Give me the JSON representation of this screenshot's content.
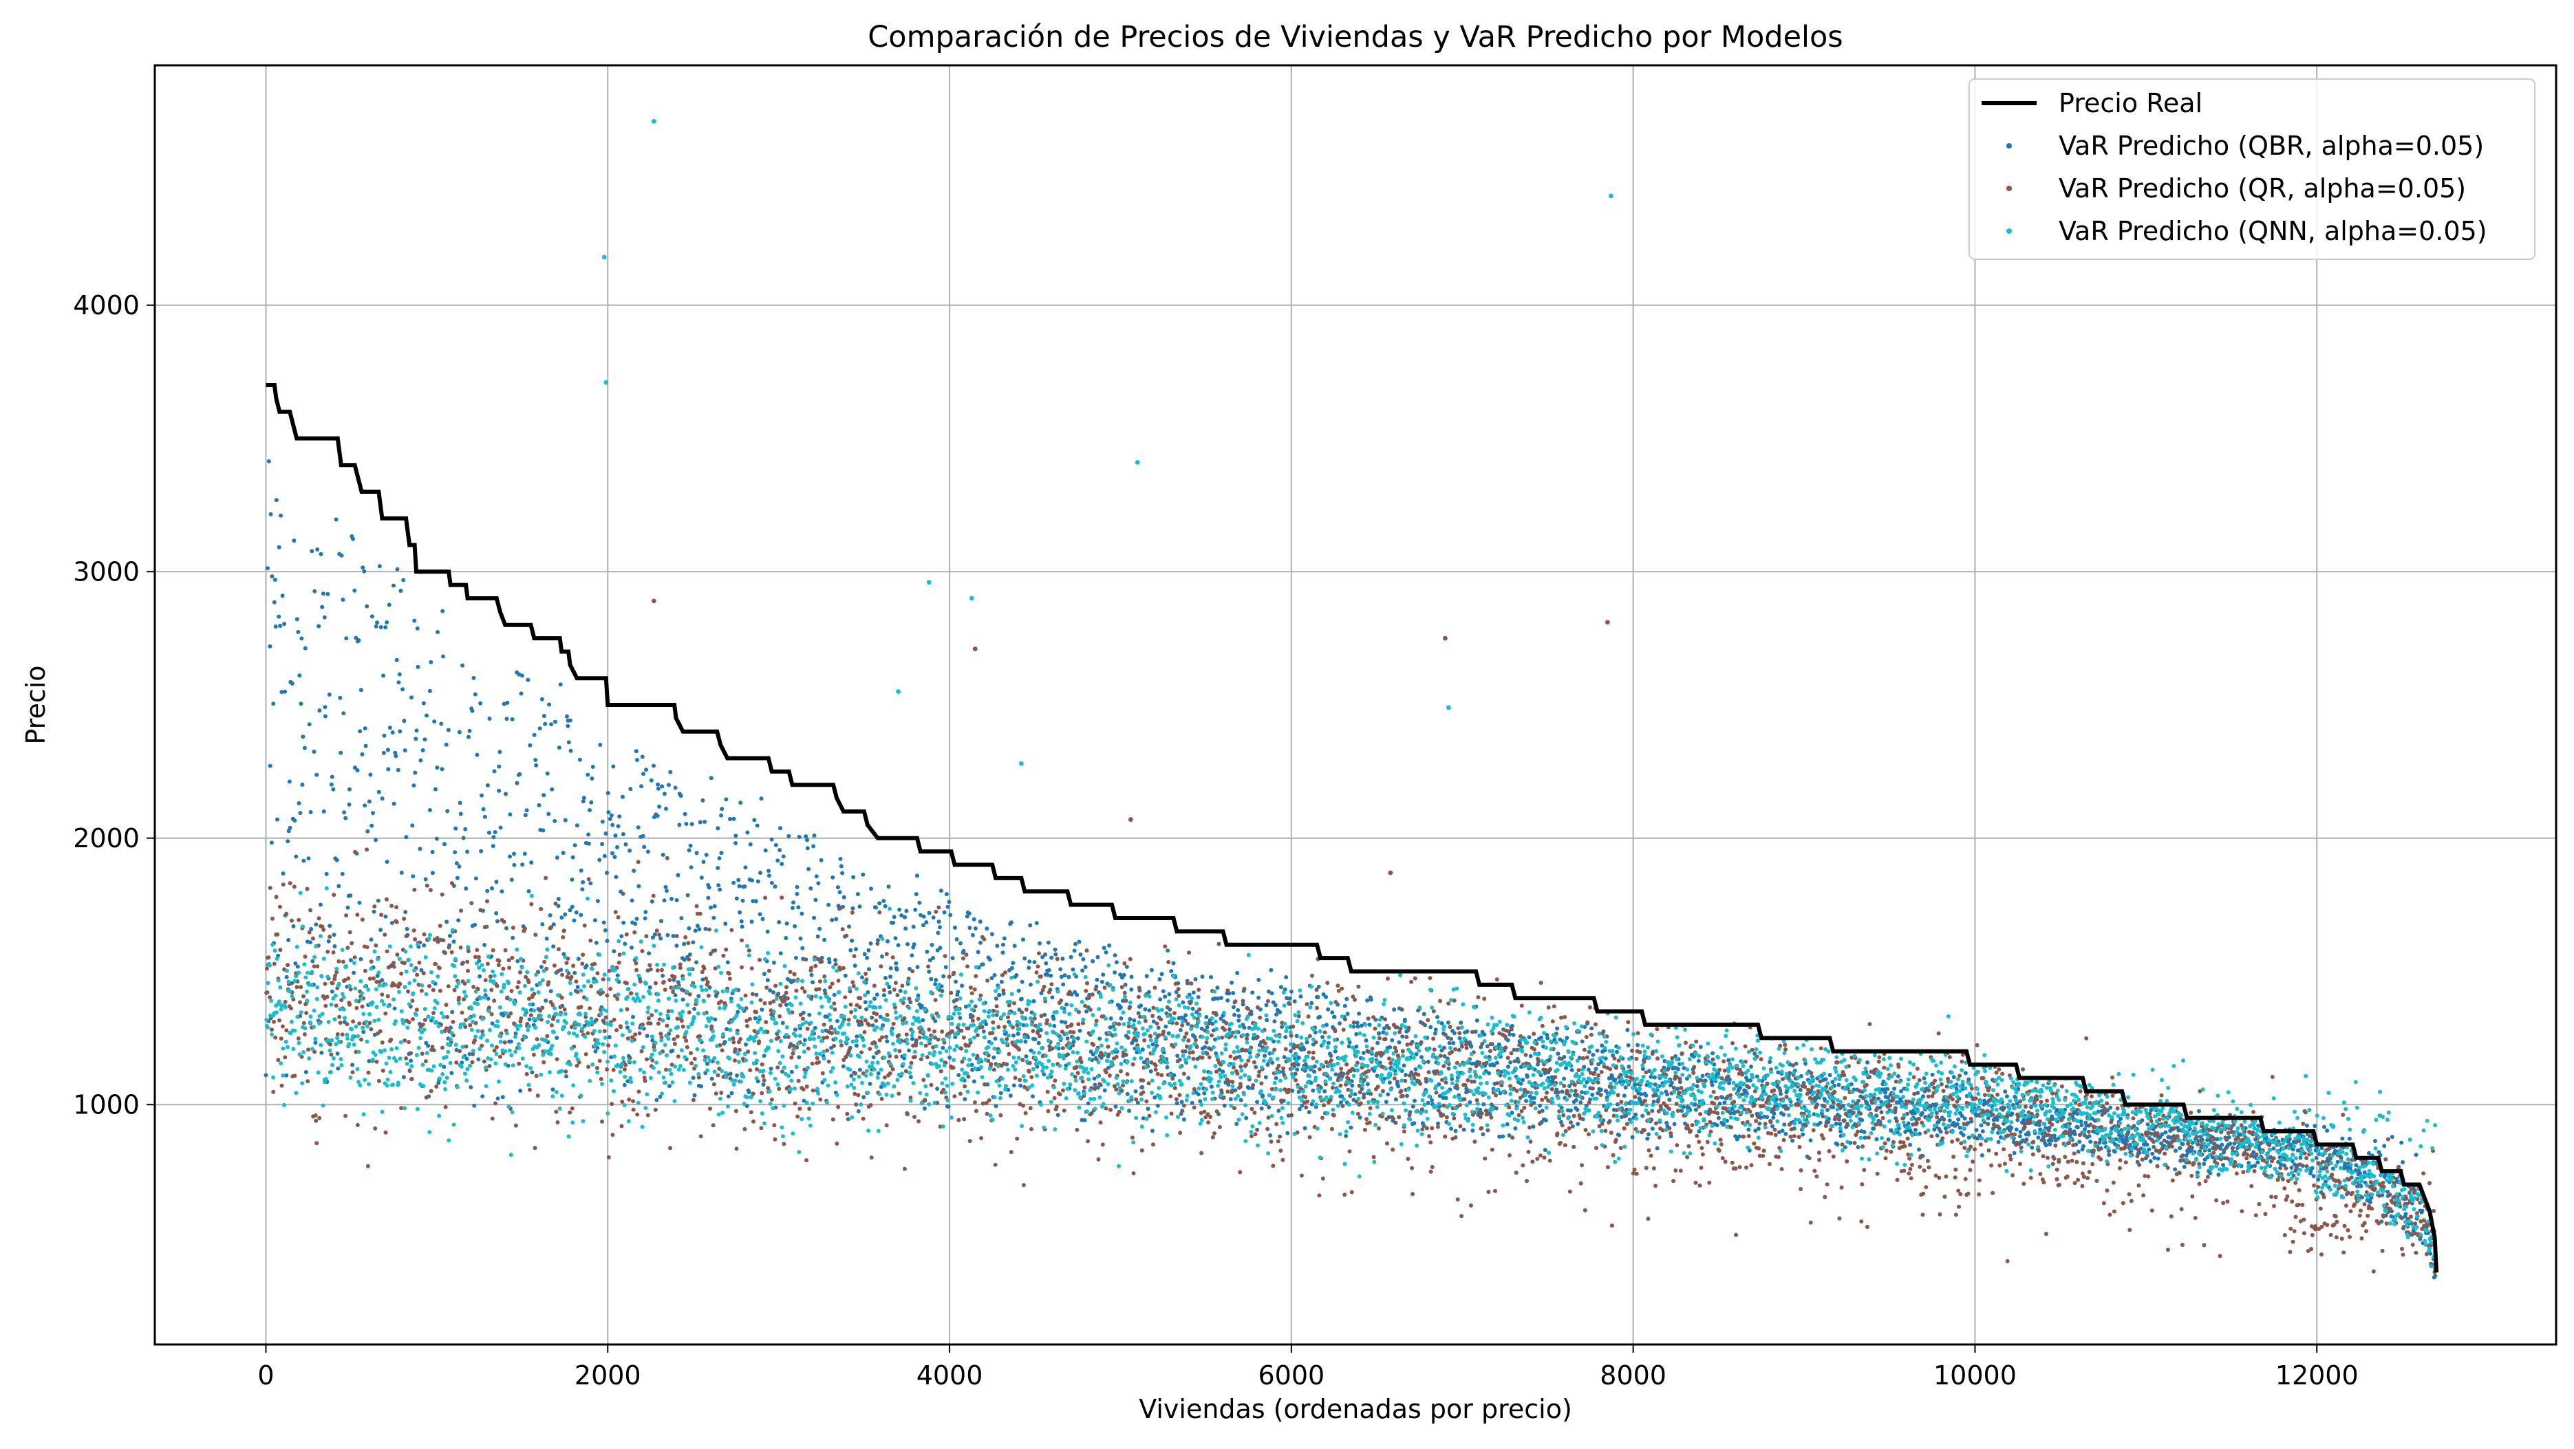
{
  "chart_data": {
    "type": "scatter",
    "title": "Comparación de Precios de Viviendas y VaR Predicho por Modelos",
    "xlabel": "Viviendas (ordenadas por precio)",
    "ylabel": "Precio",
    "xlim": [
      -650,
      13400
    ],
    "ylim": [
      100,
      4900
    ],
    "xticks": [
      0,
      2000,
      4000,
      6000,
      8000,
      10000,
      12000
    ],
    "yticks": [
      1000,
      2000,
      3000,
      4000
    ],
    "grid": true,
    "legend_position": "top-right",
    "n_points": 12700,
    "series": [
      {
        "name": "Precio Real",
        "kind": "line",
        "color": "#000000",
        "points": [
          [
            0,
            3700
          ],
          [
            50,
            3700
          ],
          [
            60,
            3650
          ],
          [
            80,
            3600
          ],
          [
            140,
            3600
          ],
          [
            160,
            3550
          ],
          [
            180,
            3500
          ],
          [
            420,
            3500
          ],
          [
            440,
            3400
          ],
          [
            520,
            3400
          ],
          [
            540,
            3350
          ],
          [
            560,
            3300
          ],
          [
            660,
            3300
          ],
          [
            680,
            3200
          ],
          [
            820,
            3200
          ],
          [
            840,
            3100
          ],
          [
            870,
            3100
          ],
          [
            880,
            3000
          ],
          [
            1070,
            3000
          ],
          [
            1080,
            2950
          ],
          [
            1170,
            2950
          ],
          [
            1180,
            2900
          ],
          [
            1350,
            2900
          ],
          [
            1370,
            2850
          ],
          [
            1400,
            2800
          ],
          [
            1550,
            2800
          ],
          [
            1570,
            2750
          ],
          [
            1720,
            2750
          ],
          [
            1730,
            2700
          ],
          [
            1770,
            2700
          ],
          [
            1780,
            2650
          ],
          [
            1820,
            2600
          ],
          [
            1990,
            2600
          ],
          [
            2000,
            2500
          ],
          [
            2390,
            2500
          ],
          [
            2400,
            2450
          ],
          [
            2440,
            2400
          ],
          [
            2640,
            2400
          ],
          [
            2660,
            2350
          ],
          [
            2700,
            2300
          ],
          [
            2940,
            2300
          ],
          [
            2960,
            2250
          ],
          [
            3060,
            2250
          ],
          [
            3080,
            2200
          ],
          [
            3320,
            2200
          ],
          [
            3340,
            2150
          ],
          [
            3380,
            2100
          ],
          [
            3500,
            2100
          ],
          [
            3520,
            2050
          ],
          [
            3580,
            2000
          ],
          [
            3810,
            2000
          ],
          [
            3830,
            1950
          ],
          [
            4010,
            1950
          ],
          [
            4030,
            1900
          ],
          [
            4250,
            1900
          ],
          [
            4270,
            1850
          ],
          [
            4420,
            1850
          ],
          [
            4440,
            1800
          ],
          [
            4690,
            1800
          ],
          [
            4710,
            1750
          ],
          [
            4950,
            1750
          ],
          [
            4970,
            1700
          ],
          [
            5310,
            1700
          ],
          [
            5330,
            1650
          ],
          [
            5600,
            1650
          ],
          [
            5620,
            1600
          ],
          [
            6150,
            1600
          ],
          [
            6170,
            1550
          ],
          [
            6330,
            1550
          ],
          [
            6350,
            1500
          ],
          [
            7080,
            1500
          ],
          [
            7100,
            1450
          ],
          [
            7290,
            1450
          ],
          [
            7310,
            1400
          ],
          [
            7770,
            1400
          ],
          [
            7790,
            1350
          ],
          [
            8050,
            1350
          ],
          [
            8070,
            1300
          ],
          [
            8730,
            1300
          ],
          [
            8750,
            1250
          ],
          [
            9150,
            1250
          ],
          [
            9170,
            1200
          ],
          [
            9950,
            1200
          ],
          [
            9970,
            1150
          ],
          [
            10240,
            1150
          ],
          [
            10260,
            1100
          ],
          [
            10630,
            1100
          ],
          [
            10650,
            1050
          ],
          [
            10860,
            1050
          ],
          [
            10880,
            1000
          ],
          [
            11220,
            1000
          ],
          [
            11240,
            950
          ],
          [
            11670,
            950
          ],
          [
            11690,
            900
          ],
          [
            11980,
            900
          ],
          [
            12000,
            850
          ],
          [
            12210,
            850
          ],
          [
            12230,
            800
          ],
          [
            12360,
            800
          ],
          [
            12380,
            750
          ],
          [
            12490,
            750
          ],
          [
            12510,
            700
          ],
          [
            12600,
            700
          ],
          [
            12630,
            650
          ],
          [
            12660,
            600
          ],
          [
            12690,
            500
          ],
          [
            12700,
            370
          ]
        ]
      },
      {
        "name": "VaR Predicho (QBR, alpha=0.05)",
        "kind": "scatter",
        "color": "#1f77b4"
      },
      {
        "name": "VaR Predicho (QR, alpha=0.05)",
        "kind": "scatter",
        "color": "#8c564b"
      },
      {
        "name": "VaR Predicho (QNN, alpha=0.05)",
        "kind": "scatter",
        "color": "#17becf"
      }
    ],
    "outliers": [
      {
        "series": 3,
        "x": 2270,
        "y": 4690
      },
      {
        "series": 3,
        "x": 1980,
        "y": 4180
      },
      {
        "series": 3,
        "x": 1990,
        "y": 3710
      },
      {
        "series": 3,
        "x": 7870,
        "y": 4410
      },
      {
        "series": 3,
        "x": 5100,
        "y": 3410
      },
      {
        "series": 3,
        "x": 3880,
        "y": 2960
      },
      {
        "series": 3,
        "x": 4130,
        "y": 2900
      },
      {
        "series": 3,
        "x": 6920,
        "y": 2490
      },
      {
        "series": 3,
        "x": 3700,
        "y": 2550
      },
      {
        "series": 3,
        "x": 4420,
        "y": 2280
      },
      {
        "series": 2,
        "x": 6900,
        "y": 2750
      },
      {
        "series": 2,
        "x": 7850,
        "y": 2810
      },
      {
        "series": 2,
        "x": 2270,
        "y": 2890
      },
      {
        "series": 2,
        "x": 4150,
        "y": 2710
      },
      {
        "series": 2,
        "x": 5060,
        "y": 2070
      },
      {
        "series": 2,
        "x": 6580,
        "y": 1870
      }
    ]
  }
}
